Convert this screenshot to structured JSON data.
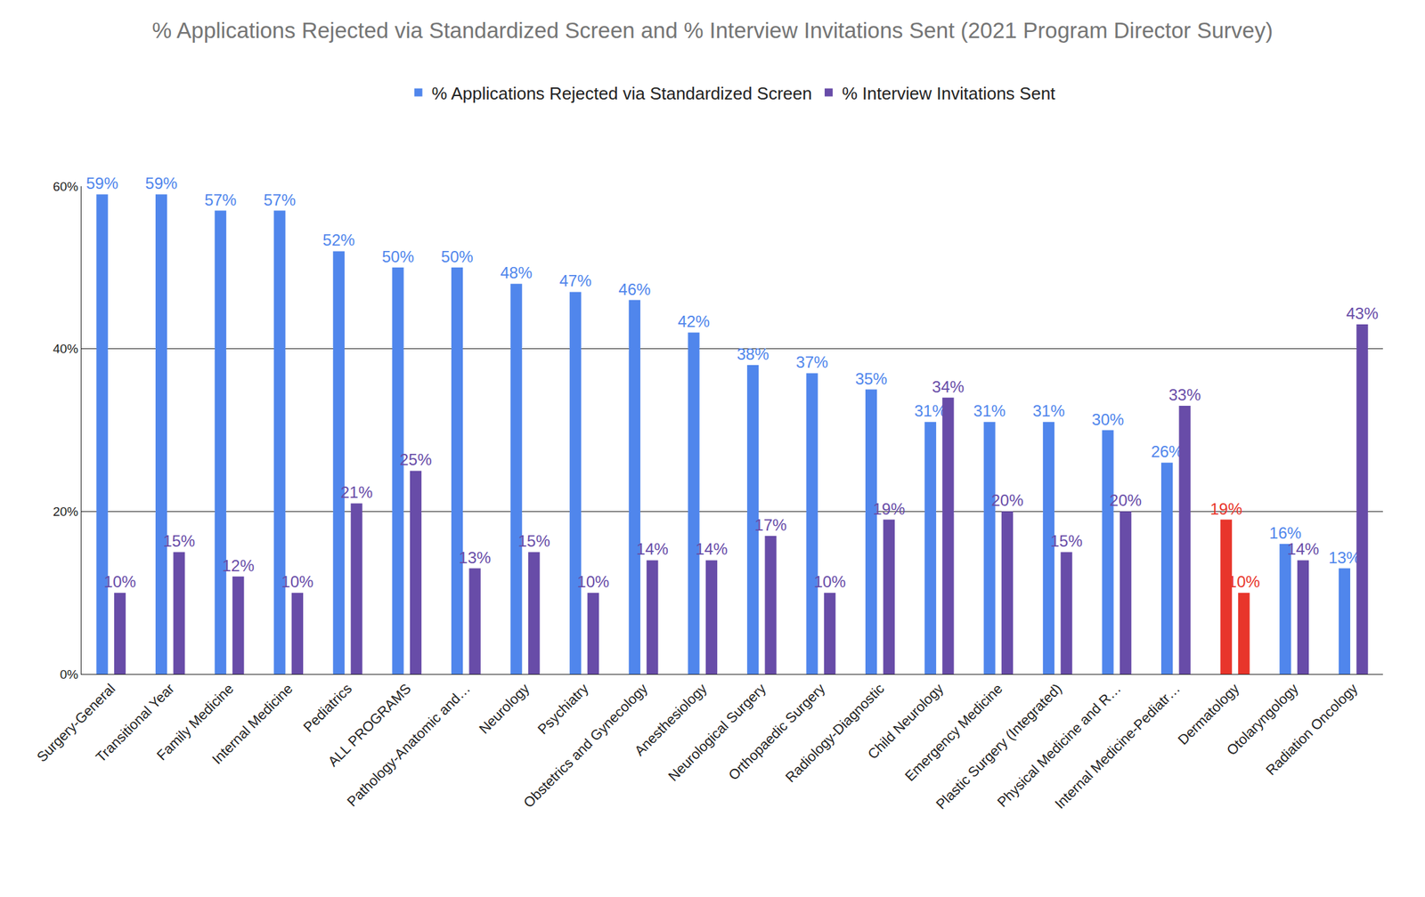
{
  "chart_data": {
    "type": "bar",
    "title": "% Applications Rejected via Standardized Screen and % Interview Invitations Sent (2021 Program Director Survey)",
    "categories": [
      "Surgery-General",
      "Transitional Year",
      "Family Medicine",
      "Internal Medicine",
      "Pediatrics",
      "ALL PROGRAMS",
      "Pathology-Anatomic and…",
      "Neurology",
      "Psychiatry",
      "Obstetrics and Gynecology",
      "Anesthesiology",
      "Neurological Surgery",
      "Orthopaedic Surgery",
      "Radiology-Diagnostic",
      "Child Neurology",
      "Emergency Medicine",
      "Plastic Surgery (Integrated)",
      "Physical Medicine and R…",
      "Internal Medicine-Pediatr…",
      "Dermatology",
      "Otolaryngology",
      "Radiation Oncology"
    ],
    "series": [
      {
        "name": "% Applications Rejected via Standardized Screen",
        "color": "#5086ec",
        "colors": [
          "#5086ec",
          "#5086ec",
          "#5086ec",
          "#5086ec",
          "#5086ec",
          "#5086ec",
          "#5086ec",
          "#5086ec",
          "#5086ec",
          "#5086ec",
          "#5086ec",
          "#5086ec",
          "#5086ec",
          "#5086ec",
          "#5086ec",
          "#5086ec",
          "#5086ec",
          "#5086ec",
          "#5086ec",
          "#e8352b",
          "#5086ec",
          "#5086ec"
        ],
        "values": [
          59,
          59,
          57,
          57,
          52,
          50,
          50,
          48,
          47,
          46,
          42,
          38,
          37,
          35,
          31,
          31,
          31,
          30,
          26,
          19,
          16,
          13
        ],
        "value_labels": [
          "59%",
          "59%",
          "57%",
          "57%",
          "52%",
          "50%",
          "50%",
          "48%",
          "47%",
          "46%",
          "42%",
          "38%",
          "37%",
          "35%",
          "31%",
          "31%",
          "31%",
          "30%",
          "26%",
          "19%",
          "16%",
          "13%"
        ]
      },
      {
        "name": "% Interview Invitations Sent",
        "color": "#684ca8",
        "colors": [
          "#684ca8",
          "#684ca8",
          "#684ca8",
          "#684ca8",
          "#684ca8",
          "#684ca8",
          "#684ca8",
          "#684ca8",
          "#684ca8",
          "#684ca8",
          "#684ca8",
          "#684ca8",
          "#684ca8",
          "#684ca8",
          "#684ca8",
          "#684ca8",
          "#684ca8",
          "#684ca8",
          "#684ca8",
          "#e8352b",
          "#684ca8",
          "#684ca8"
        ],
        "values": [
          10,
          15,
          12,
          10,
          21,
          25,
          13,
          15,
          10,
          14,
          14,
          17,
          10,
          19,
          34,
          20,
          15,
          20,
          33,
          10,
          14,
          43
        ],
        "value_labels": [
          "10%",
          "15%",
          "12%",
          "10%",
          "21%",
          "25%",
          "13%",
          "15%",
          "10%",
          "14%",
          "14%",
          "17%",
          "10%",
          "19%",
          "34%",
          "20%",
          "15%",
          "20%",
          "33%",
          "10%",
          "14%",
          "43%"
        ]
      }
    ],
    "ylim": [
      0,
      60
    ],
    "yticks": [
      {
        "value": 0,
        "label": "0%"
      },
      {
        "value": 20,
        "label": "20%"
      },
      {
        "value": 40,
        "label": "40%"
      },
      {
        "value": 60,
        "label": "60%"
      }
    ],
    "grid": true,
    "legend": "top",
    "data_labels": true
  }
}
